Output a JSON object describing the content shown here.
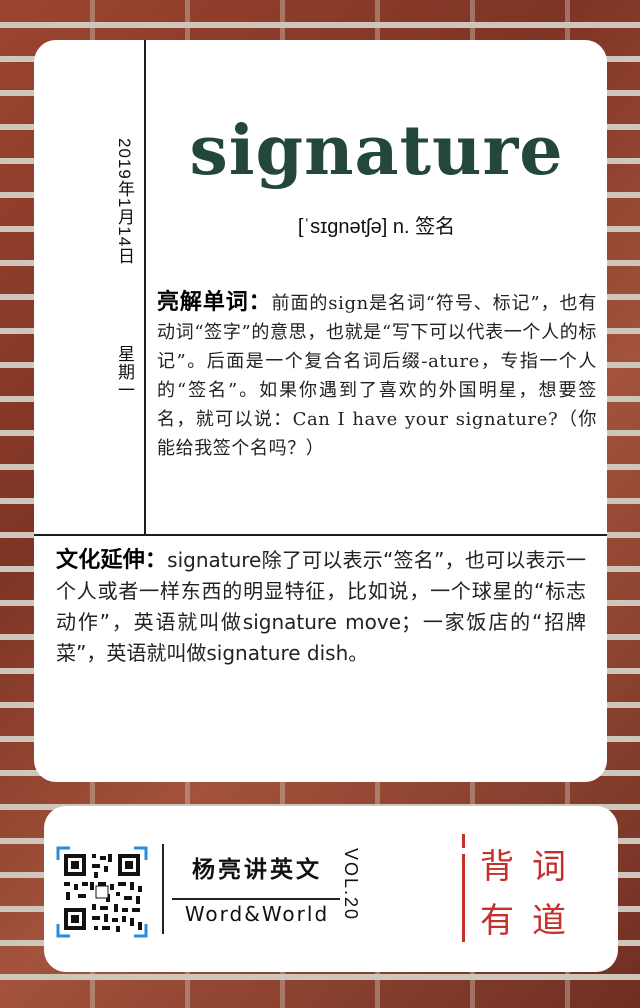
{
  "card": {
    "date": "2019年1月14日",
    "weekday": "星期一",
    "word": "signature",
    "phonetic": "[ˈsɪɡnətʃə] n. 签名",
    "explain_label": "亮解单词：",
    "explain_text": "前面的sign是名词“符号、标记”，也有动词“签字”的意思，也就是“写下可以代表一个人的标记”。后面是一个复合名词后缀-ature，专指一个人的“签名”。如果你遇到了喜欢的外国明星，想要签名，就可以说：Can I have your signature?（你能给我签个名吗？）",
    "culture_label": "文化延伸：",
    "culture_text": "signature除了可以表示“签名”，也可以表示一个人或者一样东西的明显特征，比如说，一个球星的“标志动作”，英语就叫做signature move；一家饭店的“招牌菜”，英语就叫做signature dish。"
  },
  "footer": {
    "brand_cn": "杨亮讲英文",
    "brand_en": "Word&World",
    "volume": "VOL.20",
    "slogan_line1": "背词",
    "slogan_line2": "有道",
    "accent_color": "#c4302b",
    "qr_icon": "qr-code-icon"
  },
  "colors": {
    "word": "#23473a",
    "background": "#8a3e2c"
  }
}
